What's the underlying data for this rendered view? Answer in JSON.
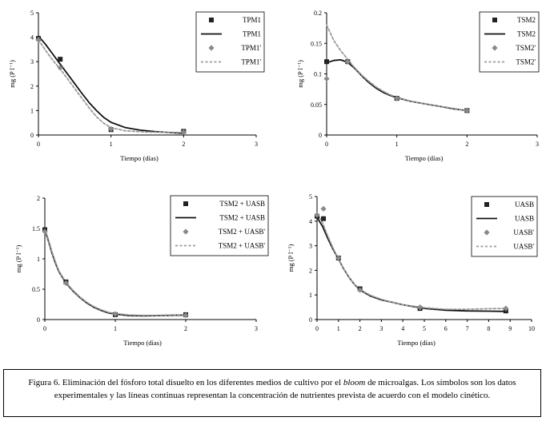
{
  "chart_data": [
    {
      "type": "line",
      "xlabel": "Tiempo (días)",
      "ylabel": "mg (P l⁻¹)",
      "xlim": [
        0,
        3
      ],
      "xticks": [
        0,
        1,
        2,
        3
      ],
      "ylim": [
        0,
        5
      ],
      "yticks": [
        0,
        1,
        2,
        3,
        4,
        5
      ],
      "grid": false,
      "legend_position": "top-right",
      "series": [
        {
          "name": "TPM1",
          "kind": "marker-square",
          "color": "#222222",
          "x": [
            0,
            0.3,
            1,
            2
          ],
          "y": [
            3.95,
            3.1,
            0.22,
            0.15
          ]
        },
        {
          "name": "TPM1",
          "kind": "solid-line",
          "color": "#111111",
          "x": [
            0,
            0.1,
            0.2,
            0.3,
            0.4,
            0.5,
            0.6,
            0.7,
            0.8,
            0.9,
            1.0,
            1.2,
            1.4,
            1.6,
            1.8,
            2.0
          ],
          "y": [
            4.05,
            3.7,
            3.3,
            2.9,
            2.5,
            2.1,
            1.7,
            1.32,
            1.0,
            0.72,
            0.52,
            0.3,
            0.2,
            0.14,
            0.1,
            0.07
          ]
        },
        {
          "name": "TPM1'",
          "kind": "marker-diamond",
          "color": "#8a8a8a",
          "x": [
            0,
            0.3,
            1,
            2
          ],
          "y": [
            3.9,
            2.75,
            0.25,
            0.12
          ]
        },
        {
          "name": "TPM1'",
          "kind": "dashed-line",
          "color": "#9a9a9a",
          "x": [
            0,
            0.1,
            0.2,
            0.3,
            0.4,
            0.5,
            0.6,
            0.7,
            0.8,
            0.9,
            1.0,
            1.2,
            1.5,
            2.0
          ],
          "y": [
            3.9,
            3.45,
            3.05,
            2.7,
            2.3,
            1.9,
            1.5,
            1.1,
            0.75,
            0.48,
            0.3,
            0.17,
            0.12,
            0.1
          ]
        }
      ]
    },
    {
      "type": "line",
      "xlabel": "Tiempo (días)",
      "ylabel": "mg (P l⁻¹)",
      "xlim": [
        0,
        3
      ],
      "xticks": [
        0,
        1,
        2,
        3
      ],
      "ylim": [
        0,
        0.2
      ],
      "yticks": [
        0,
        0.05,
        0.1,
        0.15,
        0.2
      ],
      "grid": false,
      "legend_position": "top-right",
      "series": [
        {
          "name": "TSM2",
          "kind": "marker-square",
          "color": "#222222",
          "x": [
            0,
            0.3,
            1,
            2
          ],
          "y": [
            0.12,
            0.12,
            0.06,
            0.04
          ]
        },
        {
          "name": "TSM2",
          "kind": "solid-line",
          "color": "#111111",
          "x": [
            0,
            0.1,
            0.2,
            0.3,
            0.4,
            0.5,
            0.6,
            0.7,
            0.8,
            0.9,
            1.0,
            1.2,
            1.4,
            1.6,
            1.8,
            2.0
          ],
          "y": [
            0.118,
            0.122,
            0.123,
            0.119,
            0.109,
            0.097,
            0.086,
            0.077,
            0.07,
            0.065,
            0.061,
            0.055,
            0.051,
            0.047,
            0.043,
            0.04
          ]
        },
        {
          "name": "TSM2'",
          "kind": "marker-diamond",
          "color": "#8a8a8a",
          "x": [
            0,
            0.3,
            1,
            2
          ],
          "y": [
            0.092,
            0.12,
            0.06,
            0.04
          ]
        },
        {
          "name": "TSM2'",
          "kind": "dashed-line",
          "color": "#9a9a9a",
          "x": [
            0,
            0.1,
            0.2,
            0.3,
            0.4,
            0.5,
            0.6,
            0.7,
            0.8,
            0.9,
            1.0,
            1.2,
            1.5,
            2.0
          ],
          "y": [
            0.18,
            0.155,
            0.138,
            0.124,
            0.11,
            0.098,
            0.088,
            0.079,
            0.072,
            0.066,
            0.062,
            0.055,
            0.049,
            0.04
          ]
        }
      ]
    },
    {
      "type": "line",
      "xlabel": "Tiempo (días)",
      "ylabel": "mg (P l⁻¹)",
      "xlim": [
        0,
        3
      ],
      "xticks": [
        0,
        1,
        2,
        3
      ],
      "ylim": [
        0,
        2
      ],
      "yticks": [
        0,
        0.5,
        1,
        1.5,
        2
      ],
      "grid": false,
      "legend_position": "top-right",
      "series": [
        {
          "name": "TSM2 + UASB",
          "kind": "marker-square",
          "color": "#222222",
          "x": [
            0,
            0.3,
            1,
            2
          ],
          "y": [
            1.48,
            0.62,
            0.08,
            0.08
          ]
        },
        {
          "name": "TSM2 + UASB",
          "kind": "solid-line",
          "color": "#111111",
          "x": [
            0,
            0.05,
            0.1,
            0.15,
            0.2,
            0.3,
            0.4,
            0.5,
            0.6,
            0.7,
            0.8,
            0.9,
            1.0,
            1.2,
            1.4,
            1.6,
            1.8,
            2.0
          ],
          "y": [
            1.48,
            1.3,
            1.1,
            0.93,
            0.79,
            0.6,
            0.47,
            0.36,
            0.27,
            0.2,
            0.15,
            0.11,
            0.09,
            0.065,
            0.06,
            0.065,
            0.07,
            0.075
          ]
        },
        {
          "name": "TSM2 + UASB'",
          "kind": "marker-diamond",
          "color": "#8a8a8a",
          "x": [
            0,
            0.3,
            1,
            2
          ],
          "y": [
            1.45,
            0.6,
            0.09,
            0.07
          ]
        },
        {
          "name": "TSM2 + UASB'",
          "kind": "dashed-line",
          "color": "#9a9a9a",
          "x": [
            0,
            0.05,
            0.1,
            0.15,
            0.2,
            0.3,
            0.4,
            0.5,
            0.6,
            0.7,
            0.8,
            0.9,
            1.0,
            1.2,
            1.4,
            1.6,
            1.8,
            2.0
          ],
          "y": [
            1.5,
            1.32,
            1.12,
            0.95,
            0.8,
            0.61,
            0.48,
            0.37,
            0.28,
            0.21,
            0.16,
            0.12,
            0.1,
            0.075,
            0.068,
            0.07,
            0.075,
            0.08
          ]
        }
      ]
    },
    {
      "type": "line",
      "xlabel": "Tiempo (días)",
      "ylabel": "mg (P l⁻¹)",
      "xlim": [
        0,
        10
      ],
      "xticks": [
        0,
        1,
        2,
        3,
        4,
        5,
        6,
        7,
        8,
        9,
        10
      ],
      "ylim": [
        0,
        5
      ],
      "yticks": [
        0,
        1,
        2,
        3,
        4,
        5
      ],
      "grid": false,
      "legend_position": "top-right",
      "series": [
        {
          "name": "UASB",
          "kind": "marker-square",
          "color": "#222222",
          "x": [
            0,
            0.3,
            1,
            2,
            4.8,
            8.8
          ],
          "y": [
            4.2,
            4.1,
            2.5,
            1.25,
            0.45,
            0.35
          ]
        },
        {
          "name": "UASB",
          "kind": "solid-line",
          "color": "#111111",
          "x": [
            0,
            0.25,
            0.5,
            0.75,
            1,
            1.25,
            1.5,
            1.75,
            2,
            2.5,
            3,
            3.5,
            4,
            5,
            6,
            7,
            8,
            8.8
          ],
          "y": [
            4.15,
            3.8,
            3.3,
            2.85,
            2.45,
            2.05,
            1.7,
            1.42,
            1.2,
            0.95,
            0.8,
            0.7,
            0.6,
            0.45,
            0.38,
            0.35,
            0.34,
            0.33
          ]
        },
        {
          "name": "UASB'",
          "kind": "marker-diamond",
          "color": "#8a8a8a",
          "x": [
            0,
            0.3,
            1,
            2,
            4.8,
            8.8
          ],
          "y": [
            4.25,
            4.5,
            2.5,
            1.2,
            0.5,
            0.45
          ]
        },
        {
          "name": "UASB'",
          "kind": "dashed-line",
          "color": "#9a9a9a",
          "x": [
            0,
            0.25,
            0.5,
            0.75,
            1,
            1.25,
            1.5,
            1.75,
            2,
            2.5,
            3,
            3.5,
            4,
            5,
            6,
            7,
            8,
            8.8
          ],
          "y": [
            4.3,
            3.95,
            3.4,
            2.9,
            2.45,
            2.05,
            1.7,
            1.42,
            1.22,
            0.98,
            0.82,
            0.7,
            0.6,
            0.48,
            0.42,
            0.42,
            0.44,
            0.45
          ]
        }
      ]
    }
  ],
  "caption": {
    "prefix": "Figura 6. Eliminación del fósforo total disuelto en los diferentes medios de cultivo por el ",
    "emphasis": "bloom",
    "suffix": " de microalgas. Los símbolos son los datos experimentales y las líneas continuas representan la concentración de nutrientes prevista de acuerdo con el modelo cinético."
  }
}
